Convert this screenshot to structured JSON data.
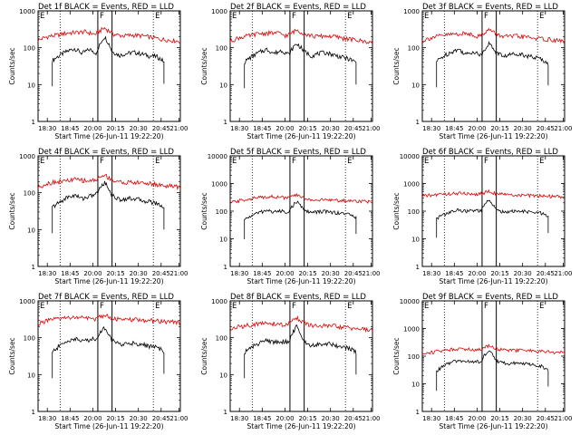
{
  "figure": {
    "x_tick_labels": [
      "18:30",
      "18:45",
      "20:00",
      "20:15",
      "20:30",
      "20:45",
      "21:00"
    ],
    "x_axis_label": "Start Time (26-Jun-11 19:22:20)",
    "y_axis_label": "Counts/sec",
    "markers": [
      "E",
      "F",
      "E"
    ],
    "colors": {
      "events": "#000000",
      "lld": "#e00000",
      "background": "#ffffff"
    }
  },
  "chart_data": [
    {
      "type": "line",
      "title": "Det 1f BLACK = Events, RED = LLD",
      "xlabel": "Start Time (26-Jun-11 19:22:20)",
      "ylabel": "Counts/sec",
      "scale_y": "log",
      "ylim": [
        1,
        1000
      ],
      "y_tick_labels": [
        "1",
        "10",
        "100",
        "1000"
      ],
      "x_tick_labels": [
        "18:30",
        "18:45",
        "20:00",
        "20:15",
        "20:30",
        "20:45",
        "21:00"
      ],
      "grid": false,
      "series": [
        {
          "color": "black",
          "values": [
            45,
            62,
            80,
            95,
            70,
            90,
            70,
            200,
            80,
            62,
            70,
            75,
            68,
            60,
            58,
            42
          ]
        },
        {
          "color": "red",
          "values": [
            160,
            200,
            220,
            250,
            260,
            270,
            230,
            340,
            230,
            210,
            220,
            210,
            190,
            170,
            160,
            150
          ]
        }
      ]
    },
    {
      "type": "line",
      "title": "Det 2f BLACK = Events, RED = LLD",
      "xlabel": "Start Time (26-Jun-11 19:22:20)",
      "ylabel": "Counts/sec",
      "scale_y": "log",
      "ylim": [
        1,
        1000
      ],
      "y_tick_labels": [
        "1",
        "10",
        "100",
        "1000"
      ],
      "x_tick_labels": [
        "18:30",
        "18:45",
        "20:00",
        "20:15",
        "20:30",
        "20:45",
        "21:00"
      ],
      "grid": false,
      "series": [
        {
          "color": "black",
          "values": [
            40,
            58,
            75,
            90,
            70,
            85,
            65,
            130,
            80,
            60,
            70,
            74,
            64,
            56,
            50,
            40
          ]
        },
        {
          "color": "red",
          "values": [
            150,
            190,
            210,
            240,
            250,
            250,
            210,
            300,
            230,
            200,
            210,
            200,
            180,
            165,
            150,
            140
          ]
        }
      ]
    },
    {
      "type": "line",
      "title": "Det 3f BLACK = Events, RED = LLD",
      "xlabel": "Start Time (26-Jun-11 19:22:20)",
      "ylabel": "Counts/sec",
      "scale_y": "log",
      "ylim": [
        1,
        1000
      ],
      "y_tick_labels": [
        "1",
        "10",
        "100",
        "1000"
      ],
      "x_tick_labels": [
        "18:30",
        "18:45",
        "20:00",
        "20:15",
        "20:30",
        "20:45",
        "21:00"
      ],
      "grid": false,
      "series": [
        {
          "color": "black",
          "values": [
            42,
            60,
            78,
            90,
            65,
            80,
            60,
            130,
            75,
            58,
            66,
            70,
            62,
            55,
            50,
            38
          ]
        },
        {
          "color": "red",
          "values": [
            155,
            190,
            210,
            230,
            240,
            240,
            200,
            310,
            220,
            200,
            205,
            195,
            180,
            170,
            160,
            150
          ]
        }
      ]
    },
    {
      "type": "line",
      "title": "Det 4f BLACK = Events, RED = LLD",
      "xlabel": "Start Time (26-Jun-11 19:22:20)",
      "ylabel": "Counts/sec",
      "scale_y": "log",
      "ylim": [
        1,
        1000
      ],
      "y_tick_labels": [
        "1",
        "10",
        "100",
        "1000"
      ],
      "x_tick_labels": [
        "18:30",
        "18:45",
        "20:00",
        "20:15",
        "20:30",
        "20:45",
        "21:00"
      ],
      "grid": false,
      "series": [
        {
          "color": "black",
          "values": [
            40,
            55,
            75,
            85,
            70,
            80,
            95,
            190,
            85,
            65,
            70,
            70,
            62,
            58,
            52,
            40
          ]
        },
        {
          "color": "red",
          "values": [
            140,
            180,
            200,
            210,
            230,
            210,
            220,
            300,
            210,
            190,
            190,
            185,
            175,
            160,
            150,
            140
          ]
        }
      ]
    },
    {
      "type": "line",
      "title": "Det 5f BLACK = Events, RED = LLD",
      "xlabel": "Start Time (26-Jun-11 19:22:20)",
      "ylabel": "Counts/sec",
      "scale_y": "log",
      "ylim": [
        1,
        10000
      ],
      "y_tick_labels": [
        "1",
        "10",
        "100",
        "1000",
        "10000"
      ],
      "x_tick_labels": [
        "18:30",
        "18:45",
        "20:00",
        "20:15",
        "20:30",
        "20:45",
        "21:00"
      ],
      "grid": false,
      "series": [
        {
          "color": "black",
          "values": [
            48,
            70,
            90,
            105,
            95,
            100,
            95,
            220,
            105,
            90,
            95,
            98,
            90,
            85,
            78,
            60
          ]
        },
        {
          "color": "red",
          "values": [
            200,
            240,
            280,
            310,
            340,
            330,
            300,
            380,
            280,
            250,
            255,
            250,
            240,
            235,
            230,
            220
          ]
        }
      ]
    },
    {
      "type": "line",
      "title": "Det 6f BLACK = Events, RED = LLD",
      "xlabel": "Start Time (26-Jun-11 19:22:20)",
      "ylabel": "Counts/sec",
      "scale_y": "log",
      "ylim": [
        1,
        10000
      ],
      "y_tick_labels": [
        "1",
        "10",
        "100",
        "1000",
        "10000"
      ],
      "x_tick_labels": [
        "18:30",
        "18:45",
        "20:00",
        "20:15",
        "20:30",
        "20:45",
        "21:00"
      ],
      "grid": false,
      "series": [
        {
          "color": "black",
          "values": [
            55,
            75,
            95,
            110,
            100,
            105,
            100,
            250,
            110,
            95,
            98,
            100,
            95,
            90,
            85,
            65
          ]
        },
        {
          "color": "red",
          "values": [
            350,
            380,
            410,
            430,
            440,
            430,
            410,
            520,
            420,
            390,
            380,
            370,
            360,
            350,
            340,
            330
          ]
        }
      ]
    },
    {
      "type": "line",
      "title": "Det 7f BLACK = Events, RED = LLD",
      "xlabel": "Start Time (26-Jun-11 19:22:20)",
      "ylabel": "Counts/sec",
      "scale_y": "log",
      "ylim": [
        1,
        1000
      ],
      "y_tick_labels": [
        "1",
        "10",
        "100",
        "1000"
      ],
      "x_tick_labels": [
        "18:30",
        "18:45",
        "20:00",
        "20:15",
        "20:30",
        "20:45",
        "21:00"
      ],
      "grid": false,
      "series": [
        {
          "color": "black",
          "values": [
            40,
            60,
            80,
            95,
            80,
            90,
            95,
            190,
            85,
            65,
            70,
            72,
            65,
            60,
            55,
            42
          ]
        },
        {
          "color": "red",
          "values": [
            240,
            290,
            320,
            350,
            360,
            340,
            320,
            420,
            330,
            300,
            310,
            300,
            290,
            280,
            270,
            260
          ]
        }
      ]
    },
    {
      "type": "line",
      "title": "Det 8f BLACK = Events, RED = LLD",
      "xlabel": "Start Time (26-Jun-11 19:22:20)",
      "ylabel": "Counts/sec",
      "scale_y": "log",
      "ylim": [
        1,
        1000
      ],
      "y_tick_labels": [
        "1",
        "10",
        "100",
        "1000"
      ],
      "x_tick_labels": [
        "18:30",
        "18:45",
        "20:00",
        "20:15",
        "20:30",
        "20:45",
        "21:00"
      ],
      "grid": false,
      "series": [
        {
          "color": "black",
          "values": [
            40,
            55,
            72,
            85,
            75,
            80,
            75,
            200,
            80,
            62,
            68,
            70,
            64,
            58,
            52,
            40
          ]
        },
        {
          "color": "red",
          "values": [
            170,
            200,
            220,
            240,
            250,
            230,
            220,
            350,
            230,
            205,
            210,
            205,
            190,
            180,
            170,
            160
          ]
        }
      ]
    },
    {
      "type": "line",
      "title": "Det 9f BLACK = Events, RED = LLD",
      "xlabel": "Start Time (26-Jun-11 19:22:20)",
      "ylabel": "Counts/sec",
      "scale_y": "log",
      "ylim": [
        1,
        10000
      ],
      "y_tick_labels": [
        "1",
        "10",
        "100",
        "1000",
        "10000"
      ],
      "x_tick_labels": [
        "18:30",
        "18:45",
        "20:00",
        "20:15",
        "20:30",
        "20:45",
        "21:00"
      ],
      "grid": false,
      "series": [
        {
          "color": "black",
          "values": [
            28,
            45,
            60,
            70,
            62,
            65,
            60,
            160,
            70,
            55,
            55,
            58,
            52,
            48,
            44,
            32
          ]
        },
        {
          "color": "red",
          "values": [
            120,
            140,
            160,
            175,
            190,
            180,
            170,
            240,
            180,
            160,
            165,
            160,
            150,
            145,
            140,
            130
          ]
        }
      ]
    }
  ]
}
